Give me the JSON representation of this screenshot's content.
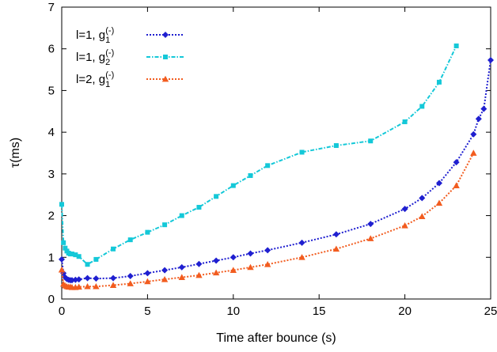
{
  "chart_data": {
    "type": "line",
    "title": "",
    "xlabel": "Time after bounce (s)",
    "ylabel": "τ(ms)",
    "xlim": [
      0,
      25
    ],
    "ylim": [
      0,
      7
    ],
    "xticks": [
      0,
      5,
      10,
      15,
      20,
      25
    ],
    "yticks": [
      0,
      1,
      2,
      3,
      4,
      5,
      6,
      7
    ],
    "grid": false,
    "legend_placement": "top-left",
    "series": [
      {
        "name_parts": [
          "l=1, g",
          "1",
          "(-)"
        ],
        "color": "#1f1fd0",
        "marker": "diamond",
        "x": [
          0,
          0.1,
          0.2,
          0.3,
          0.4,
          0.5,
          0.6,
          0.8,
          1,
          1.5,
          2,
          3,
          4,
          5,
          6,
          7,
          8,
          9,
          10,
          11,
          12,
          14,
          16,
          18,
          20,
          21,
          22,
          23,
          24,
          24.3,
          24.6,
          25
        ],
        "y": [
          0.95,
          0.62,
          0.52,
          0.48,
          0.46,
          0.45,
          0.45,
          0.46,
          0.47,
          0.5,
          0.49,
          0.5,
          0.55,
          0.62,
          0.69,
          0.76,
          0.84,
          0.92,
          1.0,
          1.09,
          1.17,
          1.35,
          1.55,
          1.8,
          2.16,
          2.42,
          2.78,
          3.28,
          3.95,
          4.32,
          4.56,
          5.73
        ]
      },
      {
        "name_parts": [
          "l=1, g",
          "2",
          "(-)"
        ],
        "color": "#14c8d8",
        "marker": "square",
        "x": [
          0,
          0.1,
          0.2,
          0.3,
          0.4,
          0.5,
          0.6,
          0.8,
          1,
          1.5,
          2,
          3,
          4,
          5,
          6,
          7,
          8,
          9,
          10,
          11,
          12,
          14,
          16,
          18,
          20,
          21,
          22,
          23
        ],
        "y": [
          2.27,
          1.35,
          1.22,
          1.15,
          1.1,
          1.08,
          1.08,
          1.06,
          1.02,
          0.83,
          0.95,
          1.2,
          1.42,
          1.6,
          1.78,
          2.0,
          2.2,
          2.46,
          2.72,
          2.96,
          3.2,
          3.52,
          3.68,
          3.79,
          4.25,
          4.62,
          5.2,
          6.07
        ]
      },
      {
        "name_parts": [
          "l=2, g",
          "1",
          "(-)"
        ],
        "color": "#f25c1f",
        "marker": "triangle",
        "x": [
          0,
          0.1,
          0.2,
          0.3,
          0.4,
          0.5,
          0.6,
          0.8,
          1,
          1.5,
          2,
          3,
          4,
          5,
          6,
          7,
          8,
          9,
          10,
          11,
          12,
          14,
          16,
          18,
          20,
          21,
          22,
          23,
          24
        ],
        "y": [
          0.7,
          0.36,
          0.32,
          0.3,
          0.29,
          0.29,
          0.28,
          0.28,
          0.29,
          0.3,
          0.3,
          0.33,
          0.37,
          0.42,
          0.47,
          0.52,
          0.57,
          0.63,
          0.69,
          0.76,
          0.83,
          1.0,
          1.2,
          1.45,
          1.76,
          1.98,
          2.3,
          2.72,
          3.5
        ]
      }
    ]
  }
}
